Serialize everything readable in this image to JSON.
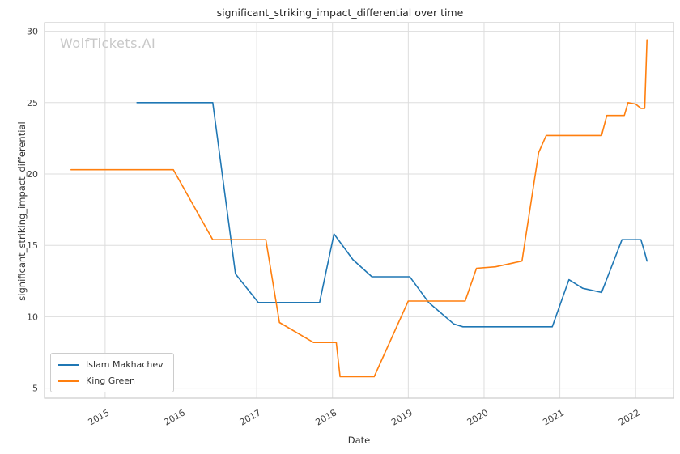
{
  "figure": {
    "title": "significant_striking_impact_differential over time",
    "watermark": "WolfTickets.AI",
    "xlabel": "Date",
    "ylabel": "significant_striking_impact_differential"
  },
  "chart_data": {
    "type": "line",
    "title": "significant_striking_impact_differential over time",
    "xlabel": "Date",
    "ylabel": "significant_striking_impact_differential",
    "xlim": [
      2014.2,
      2022.5
    ],
    "ylim": [
      4.3,
      30.6
    ],
    "xticks": [
      2015,
      2016,
      2017,
      2018,
      2019,
      2020,
      2021,
      2022
    ],
    "yticks": [
      5,
      10,
      15,
      20,
      25,
      30
    ],
    "grid": true,
    "grid_color": "#dddddd",
    "spine_color": "#cccccc",
    "legend_position": "lower left",
    "series": [
      {
        "name": "Islam Makhachev",
        "color": "#1f77b4",
        "points": [
          [
            2015.42,
            25.0
          ],
          [
            2016.42,
            25.0
          ],
          [
            2016.72,
            13.0
          ],
          [
            2017.02,
            11.0
          ],
          [
            2017.83,
            11.0
          ],
          [
            2018.02,
            15.8
          ],
          [
            2018.27,
            14.0
          ],
          [
            2018.52,
            12.8
          ],
          [
            2019.02,
            12.8
          ],
          [
            2019.27,
            11.0
          ],
          [
            2019.6,
            9.5
          ],
          [
            2019.72,
            9.3
          ],
          [
            2020.9,
            9.3
          ],
          [
            2021.12,
            12.6
          ],
          [
            2021.3,
            12.0
          ],
          [
            2021.55,
            11.7
          ],
          [
            2021.82,
            15.4
          ],
          [
            2022.07,
            15.4
          ],
          [
            2022.12,
            14.5
          ],
          [
            2022.15,
            13.9
          ]
        ]
      },
      {
        "name": "King Green",
        "color": "#ff7f0e",
        "points": [
          [
            2014.55,
            20.3
          ],
          [
            2015.9,
            20.3
          ],
          [
            2016.42,
            15.4
          ],
          [
            2017.12,
            15.4
          ],
          [
            2017.3,
            9.6
          ],
          [
            2017.75,
            8.2
          ],
          [
            2018.05,
            8.2
          ],
          [
            2018.1,
            5.8
          ],
          [
            2018.55,
            5.8
          ],
          [
            2019.0,
            11.1
          ],
          [
            2019.75,
            11.1
          ],
          [
            2019.9,
            13.4
          ],
          [
            2020.15,
            13.5
          ],
          [
            2020.5,
            13.9
          ],
          [
            2020.72,
            21.5
          ],
          [
            2020.82,
            22.7
          ],
          [
            2021.55,
            22.7
          ],
          [
            2021.62,
            24.1
          ],
          [
            2021.85,
            24.1
          ],
          [
            2021.9,
            25.0
          ],
          [
            2022.0,
            24.9
          ],
          [
            2022.07,
            24.6
          ],
          [
            2022.12,
            24.6
          ],
          [
            2022.15,
            29.4
          ]
        ]
      }
    ]
  }
}
